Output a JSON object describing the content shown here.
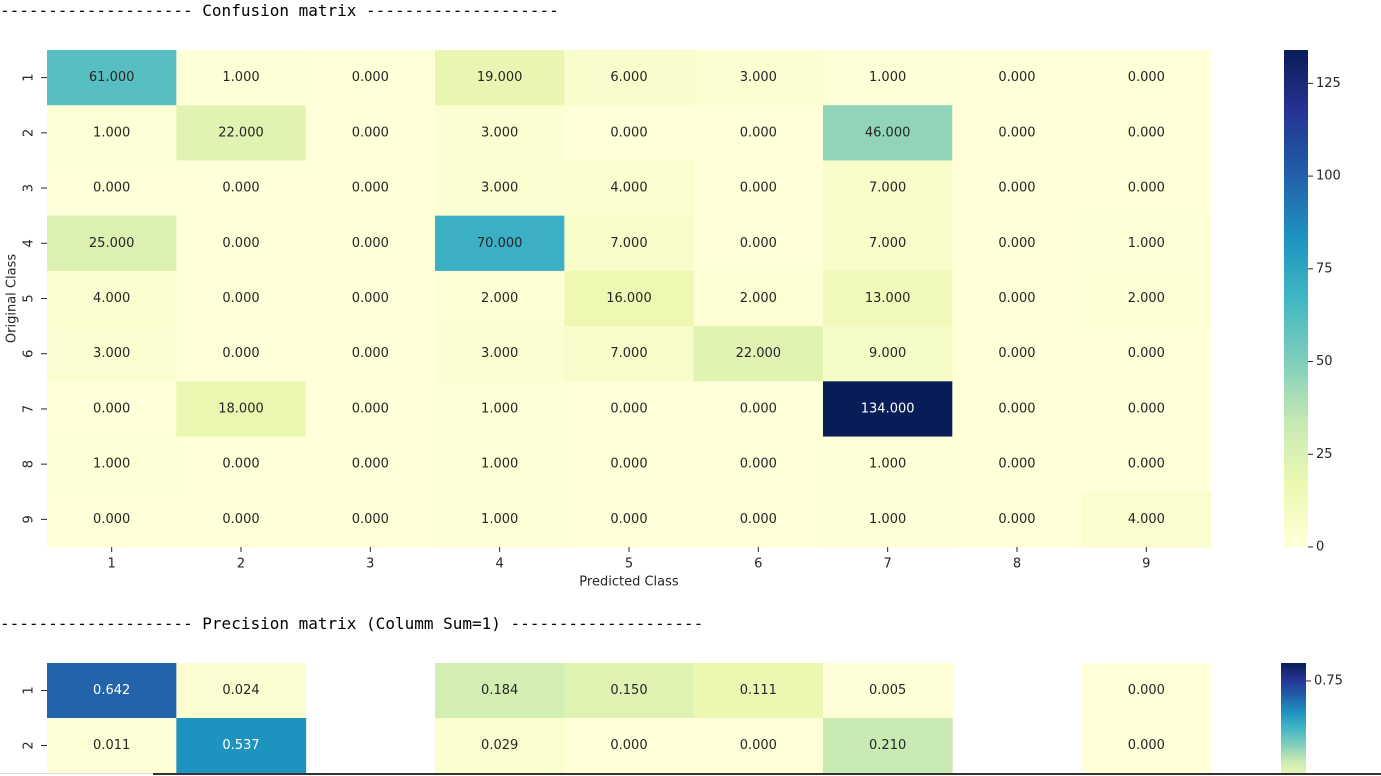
{
  "banners": {
    "confusion": "-------------------- Confusion matrix --------------------",
    "precision": "-------------------- Precision matrix (Columm Sum=1) --------------------"
  },
  "colormap": "YlGnBu",
  "chart_data": [
    {
      "type": "heatmap",
      "title": "",
      "xlabel": "Predicted Class",
      "ylabel": "Original Class",
      "x_ticks": [
        "1",
        "2",
        "3",
        "4",
        "5",
        "6",
        "7",
        "8",
        "9"
      ],
      "y_ticks": [
        "1",
        "2",
        "3",
        "4",
        "5",
        "6",
        "7",
        "8",
        "9"
      ],
      "value_format": 3,
      "vmin": 0,
      "vmax": 134,
      "colorbar_ticks": [
        0,
        25,
        50,
        75,
        100,
        125
      ],
      "values": [
        [
          61,
          1,
          0,
          19,
          6,
          3,
          1,
          0,
          0
        ],
        [
          1,
          22,
          0,
          3,
          0,
          0,
          46,
          0,
          0
        ],
        [
          0,
          0,
          0,
          3,
          4,
          0,
          7,
          0,
          0
        ],
        [
          25,
          0,
          0,
          70,
          7,
          0,
          7,
          0,
          1
        ],
        [
          4,
          0,
          0,
          2,
          16,
          2,
          13,
          0,
          2
        ],
        [
          3,
          0,
          0,
          3,
          7,
          22,
          9,
          0,
          0
        ],
        [
          0,
          18,
          0,
          1,
          0,
          0,
          134,
          0,
          0
        ],
        [
          1,
          0,
          0,
          1,
          0,
          0,
          1,
          0,
          0
        ],
        [
          0,
          0,
          0,
          1,
          0,
          0,
          1,
          0,
          4
        ]
      ]
    },
    {
      "type": "heatmap",
      "title": "",
      "xlabel": "",
      "ylabel": "",
      "y_ticks": [
        "1",
        "2"
      ],
      "value_format": 3,
      "vmin": 0,
      "vmax": 0.87,
      "colorbar_ticks": [
        0.75
      ],
      "values": [
        [
          0.642,
          0.024,
          null,
          0.184,
          0.15,
          0.111,
          0.005,
          null,
          0.0
        ],
        [
          0.011,
          0.537,
          null,
          0.029,
          0.0,
          0.0,
          0.21,
          null,
          0.0
        ]
      ]
    }
  ]
}
